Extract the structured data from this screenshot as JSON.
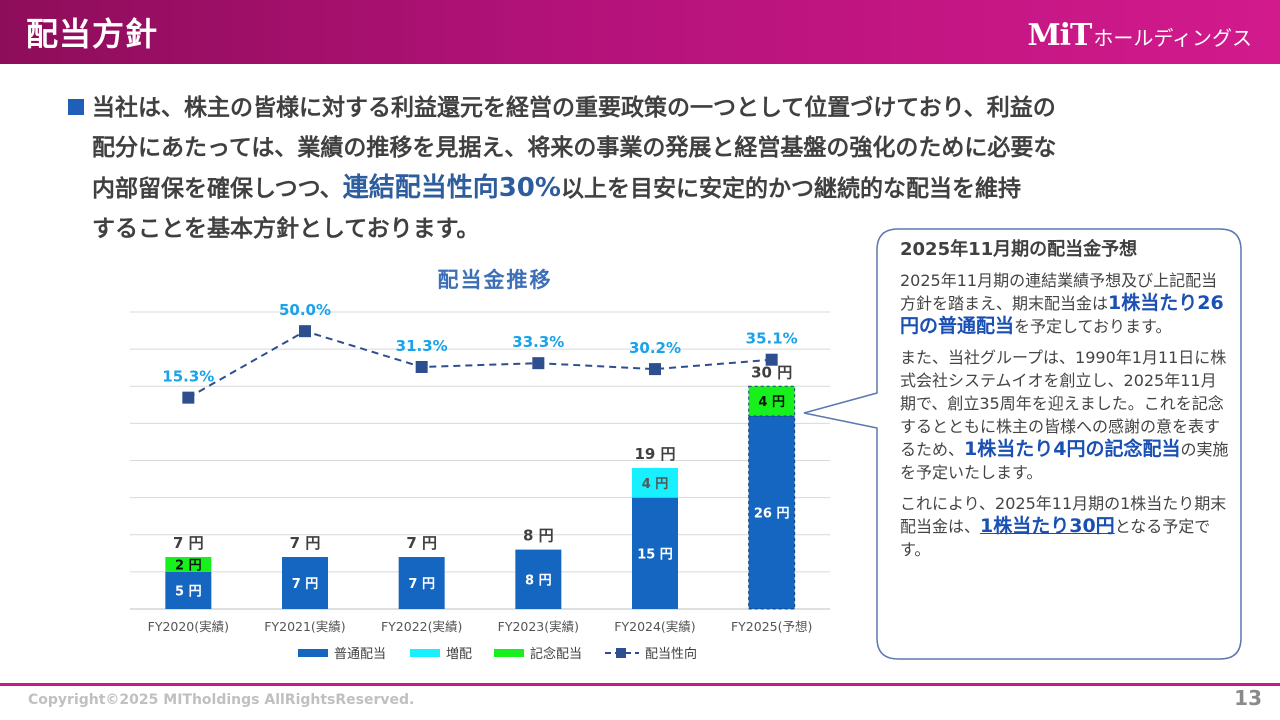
{
  "header": {
    "title": "配当方針",
    "logo_mark": "MiT",
    "logo_text": "ホールディングス"
  },
  "lead": {
    "line1": "当社は、株主の皆様に対する利益還元を経営の重要政策の一つとして位置づけており、利益の",
    "line2": "配分にあたっては、業績の推移を見据え、将来の事業の発展と経営基盤の強化のために必要な",
    "line3_pre": "内部留保を確保しつつ、",
    "line3_hl": "連結配当性向30%",
    "line3_post": "以上を目安に安定的かつ継続的な配当を維持",
    "line4": "することを基本方針としております。"
  },
  "chart_data": {
    "type": "bar",
    "title": "配当金推移",
    "categories": [
      "FY2020(実績)",
      "FY2021(実績)",
      "FY2022(実績)",
      "FY2023(実績)",
      "FY2024(実績)",
      "FY2025(予想)"
    ],
    "series": [
      {
        "name": "普通配当",
        "values": [
          5,
          7,
          7,
          8,
          15,
          26
        ],
        "labels": [
          "5 円",
          "7 円",
          "7 円",
          "8 円",
          "15 円",
          "26 円"
        ],
        "color": "#1566c0"
      },
      {
        "name": "増配",
        "values": [
          0,
          0,
          0,
          0,
          4,
          0
        ],
        "labels": [
          "",
          "",
          "",
          "",
          "4 円",
          ""
        ],
        "color": "#19f0ff"
      },
      {
        "name": "記念配当",
        "values": [
          2,
          0,
          0,
          0,
          0,
          4
        ],
        "labels": [
          "2 円",
          "",
          "",
          "",
          "",
          "4 円"
        ],
        "color": "#17f01d"
      }
    ],
    "totals": [
      7,
      7,
      7,
      8,
      19,
      30
    ],
    "total_labels": [
      "7 円",
      "7 円",
      "7 円",
      "8 円",
      "19 円",
      "30 円"
    ],
    "payout_ratio": {
      "name": "配当性向",
      "values": [
        15.3,
        50.0,
        31.3,
        33.3,
        30.2,
        35.1
      ],
      "labels": [
        "15.3%",
        "50.0%",
        "31.3%",
        "33.3%",
        "30.2%",
        "35.1%"
      ],
      "color": "#2e4f8f",
      "label_color": "#1aa3e8"
    },
    "ylim_bar": [
      0,
      40
    ],
    "ylim_ratio": [
      -95,
      60
    ],
    "forecast_index": 5,
    "grid": true,
    "legend_placement": "bottom"
  },
  "callout": {
    "title": "2025年11月期の配当金予想",
    "p1_text": "2025年11月期の連結業績予想及び上記配当方針を踏まえ、期末配当金は",
    "p1_hl": "1株当たり26円の普通配当",
    "p1_tail": "を予定しております。",
    "p2_text": "また、当社グループは、1990年1月11日に株式会社システムイオを創立し、2025年11月期で、創立35周年を迎えました。これを記念するとともに株主の皆様への感謝の意を表するため、",
    "p2_hl": "1株当たり4円の記念配当",
    "p2_tail": "の実施を予定いたします。",
    "p3_text": "これにより、2025年11月期の1株当たり期末配当金は、",
    "p3_hl": "1株当たり30円",
    "p3_tail": "となる予定です。"
  },
  "footer": {
    "copyright": "Copyright©2025 MITholdings AllRightsReserved.",
    "page": "13"
  },
  "colors": {
    "brand_magenta": "#c81a86",
    "accent_blue": "#1f5fb8"
  }
}
